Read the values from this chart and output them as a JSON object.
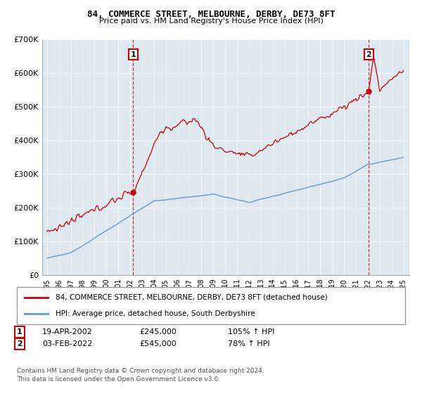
{
  "title": "84, COMMERCE STREET, MELBOURNE, DERBY, DE73 8FT",
  "subtitle": "Price paid vs. HM Land Registry's House Price Index (HPI)",
  "red_label": "84, COMMERCE STREET, MELBOURNE, DERBY, DE73 8FT (detached house)",
  "blue_label": "HPI: Average price, detached house, South Derbyshire",
  "sale1_date": "19-APR-2002",
  "sale1_price": 245000,
  "sale1_hpi_pct": "105%",
  "sale2_date": "03-FEB-2022",
  "sale2_price": 545000,
  "sale2_hpi_pct": "78%",
  "footer": "Contains HM Land Registry data © Crown copyright and database right 2024.\nThis data is licensed under the Open Government Licence v3.0.",
  "ylim": [
    0,
    700000
  ],
  "yticks": [
    0,
    100000,
    200000,
    300000,
    400000,
    500000,
    600000,
    700000
  ],
  "ytick_labels": [
    "£0",
    "£100K",
    "£200K",
    "£300K",
    "£400K",
    "£500K",
    "£600K",
    "£700K"
  ],
  "red_color": "#cc0000",
  "blue_color": "#6699cc",
  "chart_bg": "#dde8f0",
  "sale1_x": 2002.25,
  "sale2_x": 2022.08,
  "bg_color": "#ffffff",
  "grid_color": "#ffffff"
}
